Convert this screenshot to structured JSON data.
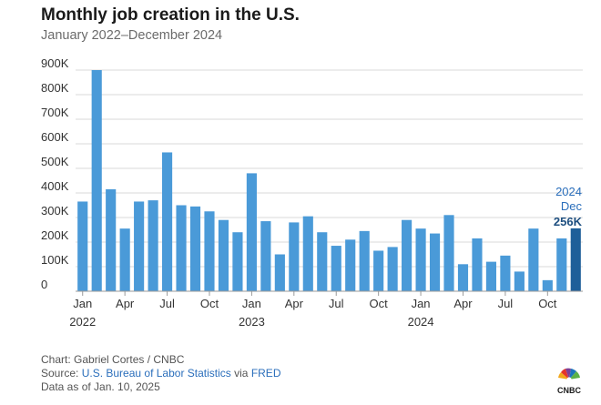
{
  "title": "Monthly job creation in the U.S.",
  "subtitle": "January 2022–December 2024",
  "chart_data": {
    "type": "bar",
    "title": "Monthly job creation in the U.S.",
    "subtitle": "January 2022–December 2024",
    "xlabel": "",
    "ylabel": "",
    "ylim": [
      0,
      900000
    ],
    "yticks": [
      0,
      100000,
      200000,
      300000,
      400000,
      500000,
      600000,
      700000,
      800000,
      900000
    ],
    "ytick_labels": [
      "0",
      "100K",
      "200K",
      "300K",
      "400K",
      "500K",
      "600K",
      "700K",
      "800K",
      "900K"
    ],
    "grid": true,
    "categories": [
      "Jan 2022",
      "Feb 2022",
      "Mar 2022",
      "Apr 2022",
      "May 2022",
      "Jun 2022",
      "Jul 2022",
      "Aug 2022",
      "Sep 2022",
      "Oct 2022",
      "Nov 2022",
      "Dec 2022",
      "Jan 2023",
      "Feb 2023",
      "Mar 2023",
      "Apr 2023",
      "May 2023",
      "Jun 2023",
      "Jul 2023",
      "Aug 2023",
      "Sep 2023",
      "Oct 2023",
      "Nov 2023",
      "Dec 2023",
      "Jan 2024",
      "Feb 2024",
      "Mar 2024",
      "Apr 2024",
      "May 2024",
      "Jun 2024",
      "Jul 2024",
      "Aug 2024",
      "Sep 2024",
      "Oct 2024",
      "Nov 2024",
      "Dec 2024"
    ],
    "values": [
      365000,
      900000,
      415000,
      255000,
      365000,
      370000,
      565000,
      350000,
      345000,
      325000,
      290000,
      240000,
      480000,
      285000,
      150000,
      280000,
      305000,
      240000,
      185000,
      210000,
      245000,
      165000,
      180000,
      290000,
      255000,
      235000,
      310000,
      110000,
      215000,
      120000,
      145000,
      80000,
      255000,
      45000,
      215000,
      256000
    ],
    "x_tick_labels": [
      {
        "index": 0,
        "month": "Jan",
        "year": "2022"
      },
      {
        "index": 3,
        "month": "Apr",
        "year": ""
      },
      {
        "index": 6,
        "month": "Jul",
        "year": ""
      },
      {
        "index": 9,
        "month": "Oct",
        "year": ""
      },
      {
        "index": 12,
        "month": "Jan",
        "year": "2023"
      },
      {
        "index": 15,
        "month": "Apr",
        "year": ""
      },
      {
        "index": 18,
        "month": "Jul",
        "year": ""
      },
      {
        "index": 21,
        "month": "Oct",
        "year": ""
      },
      {
        "index": 24,
        "month": "Jan",
        "year": "2024"
      },
      {
        "index": 27,
        "month": "Apr",
        "year": ""
      },
      {
        "index": 30,
        "month": "Jul",
        "year": ""
      },
      {
        "index": 33,
        "month": "Oct",
        "year": ""
      }
    ],
    "highlight_index": 35,
    "annotation": {
      "year": "2024",
      "month": "Dec",
      "value": "256K"
    },
    "colors": {
      "bar": "#4a9ad8",
      "highlight": "#1e5f99",
      "grid": "#d9d9d9",
      "axis_text": "#333333",
      "annotation": "#2a6ebb"
    }
  },
  "footer": {
    "credit": "Chart: Gabriel Cortes / CNBC",
    "source_prefix": "Source: ",
    "source_link": "U.S. Bureau of Labor Statistics",
    "source_mid": " via ",
    "source_link2": "FRED",
    "data_as_of": "Data as of Jan. 10, 2025"
  },
  "logo_text": "CNBC"
}
